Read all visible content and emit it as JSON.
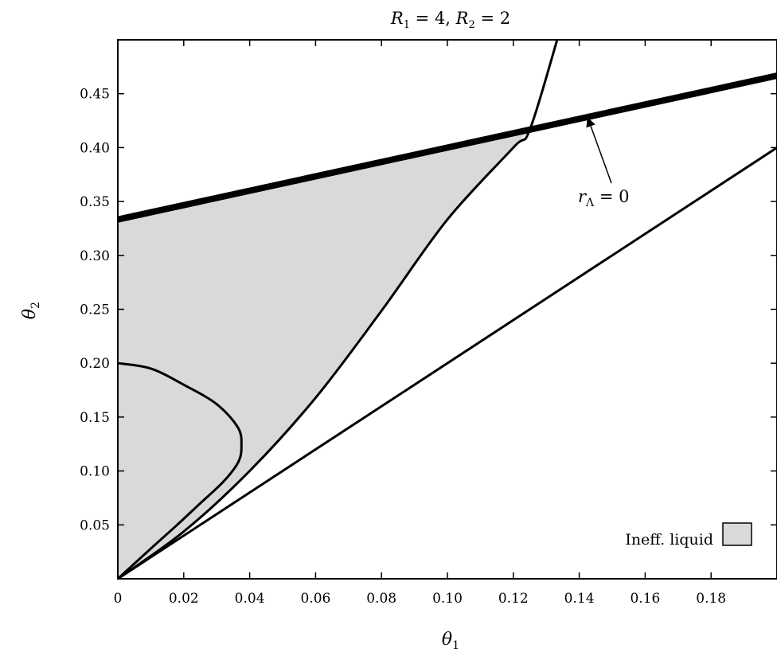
{
  "chart_data": {
    "type": "line",
    "title": "R1 = 4, R2 = 2",
    "title_parts": {
      "r1": "R",
      "r1_sub": "1",
      "r1_val": " = 4, ",
      "r2": "R",
      "r2_sub": "2",
      "r2_val": " = 2"
    },
    "xlabel": {
      "base": "θ",
      "sub": "1"
    },
    "ylabel": {
      "base": "θ",
      "sub": "2"
    },
    "xlim": [
      0,
      0.2
    ],
    "ylim": [
      0,
      0.5
    ],
    "xticks": [
      0,
      0.02,
      0.04,
      0.06,
      0.08,
      0.1,
      0.12,
      0.14,
      0.16,
      0.18
    ],
    "xtick_labels": [
      "0",
      "0.02",
      "0.04",
      "0.06",
      "0.08",
      "0.10",
      "0.12",
      "0.14",
      "0.16",
      "0.18"
    ],
    "yticks": [
      0.05,
      0.1,
      0.15,
      0.2,
      0.25,
      0.3,
      0.35,
      0.4,
      0.45
    ],
    "ytick_labels": [
      "0.05",
      "0.10",
      "0.15",
      "0.20",
      "0.25",
      "0.30",
      "0.35",
      "0.40",
      "0.45"
    ],
    "grid": false,
    "curves": {
      "r_lambda_zero": {
        "description_printed": "rΛ = 0",
        "points": [
          [
            0,
            0.3333
          ],
          [
            0.2,
            0.4667
          ]
        ],
        "linewidth": "thick"
      },
      "diagonal": {
        "points": [
          [
            0,
            0
          ],
          [
            0.2,
            0.4
          ]
        ]
      },
      "parabola": {
        "points": [
          [
            0,
            0
          ],
          [
            0.02,
            0.0438
          ],
          [
            0.04,
            0.1
          ],
          [
            0.06,
            0.1679
          ],
          [
            0.08,
            0.2486
          ],
          [
            0.1,
            0.3333
          ],
          [
            0.12,
            0.4
          ],
          [
            0.125,
            0.4167
          ],
          [
            0.1333,
            0.5
          ]
        ]
      },
      "inner_loop": {
        "points": [
          [
            0,
            0.2
          ],
          [
            0.01,
            0.195
          ],
          [
            0.02,
            0.18
          ],
          [
            0.03,
            0.162
          ],
          [
            0.0365,
            0.14
          ],
          [
            0.0375,
            0.1225
          ],
          [
            0.0365,
            0.108
          ],
          [
            0.032,
            0.09
          ],
          [
            0.025,
            0.07
          ],
          [
            0.018,
            0.05
          ],
          [
            0.01,
            0.028
          ],
          [
            0,
            0
          ]
        ]
      }
    },
    "shaded_region": {
      "label": "Ineff. liquid",
      "color": "#d9d9d9",
      "boundary": "between parabola and line rΛ = 0 from θ1 = 0 to intersection (0.125, 0.4167)"
    },
    "annotation": {
      "text_base": "r",
      "text_sub": "Λ",
      "text_rest": " = 0",
      "arrow_target": [
        0.1425,
        0.4283
      ]
    },
    "legend": {
      "placement": "bottom-right",
      "entries": [
        "Ineff. liquid"
      ]
    }
  }
}
